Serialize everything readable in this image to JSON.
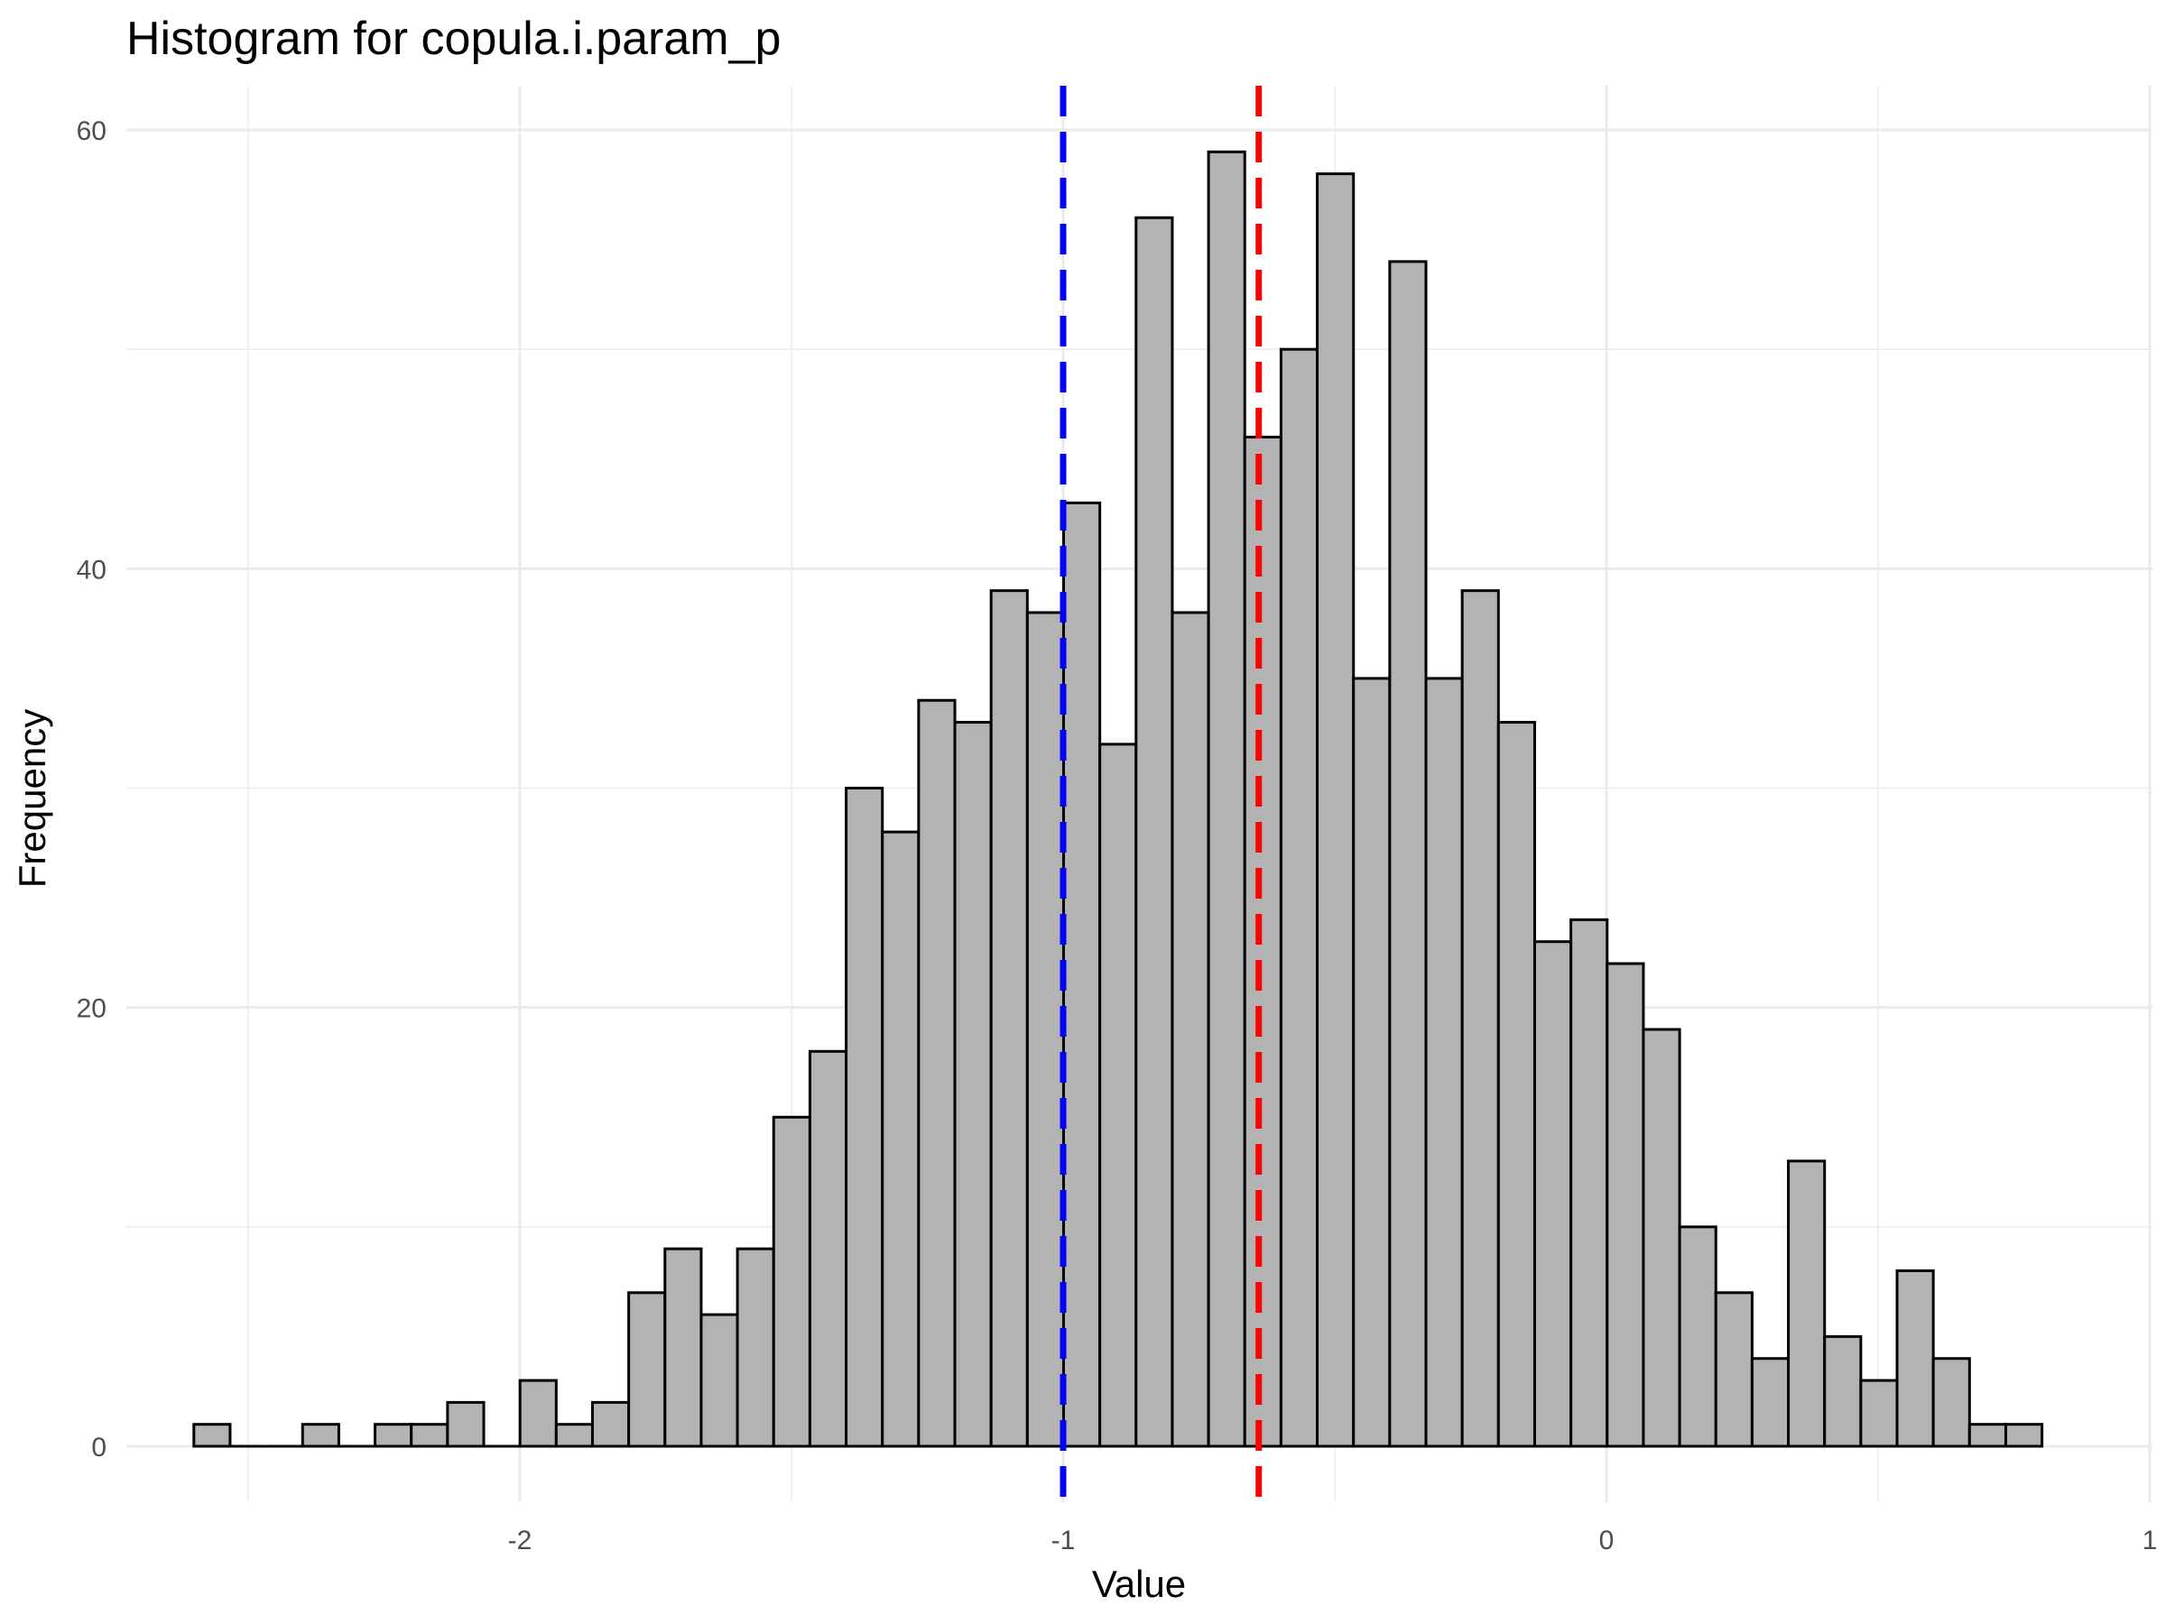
{
  "chart_data": {
    "type": "bar",
    "subtype": "histogram",
    "title": "Histogram for copula.i.param_p",
    "xlabel": "Value",
    "ylabel": "Frequency",
    "xlim": [
      -2.6,
      1.0
    ],
    "ylim": [
      0,
      60
    ],
    "x_ticks": [
      -2,
      -1,
      0,
      1
    ],
    "x_tick_labels": [
      "-2",
      "-1",
      "0",
      "1"
    ],
    "y_ticks": [
      0,
      20,
      40,
      60
    ],
    "y_tick_labels": [
      "0",
      "20",
      "40",
      "60"
    ],
    "grid": true,
    "bin_width": 0.0667,
    "bin_start": -2.6,
    "counts": [
      1,
      0,
      0,
      1,
      0,
      1,
      1,
      2,
      0,
      3,
      1,
      2,
      7,
      9,
      6,
      9,
      15,
      18,
      30,
      28,
      34,
      33,
      39,
      38,
      43,
      32,
      56,
      38,
      59,
      46,
      50,
      58,
      35,
      54,
      35,
      39,
      33,
      23,
      24,
      22,
      19,
      10,
      7,
      4,
      13,
      5,
      3,
      8,
      4,
      1,
      1
    ],
    "bar_fill": "#b3b3b3",
    "bar_edge": "#000000",
    "reference_lines": [
      {
        "x": -1.0,
        "color": "#0000ff",
        "style": "dashed"
      },
      {
        "x": -0.64,
        "color": "#ff0000",
        "style": "dashed"
      }
    ]
  }
}
